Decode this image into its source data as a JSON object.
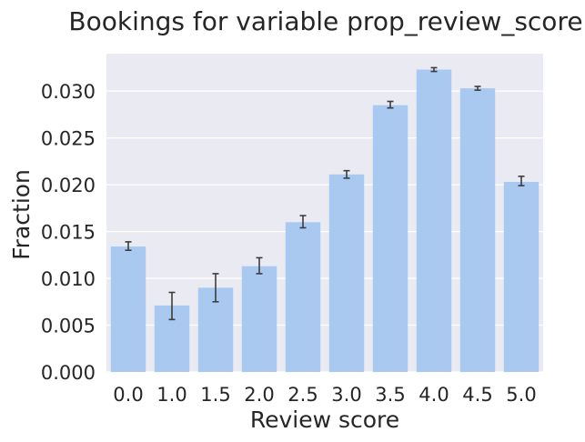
{
  "chart_data": {
    "type": "bar",
    "title": "Bookings for variable prop_review_score",
    "xlabel": "Review score",
    "ylabel": "Fraction",
    "categories": [
      "0.0",
      "1.0",
      "1.5",
      "2.0",
      "2.5",
      "3.0",
      "3.5",
      "4.0",
      "4.5",
      "5.0"
    ],
    "values": [
      0.0134,
      0.0071,
      0.009,
      0.0113,
      0.016,
      0.0211,
      0.0285,
      0.0323,
      0.0303,
      0.0203
    ],
    "error_low": [
      0.013,
      0.0056,
      0.0075,
      0.0105,
      0.0154,
      0.0207,
      0.0282,
      0.0321,
      0.0301,
      0.0199
    ],
    "error_high": [
      0.0139,
      0.0085,
      0.0105,
      0.0122,
      0.0167,
      0.0215,
      0.0289,
      0.0325,
      0.0305,
      0.0209
    ],
    "ylim": [
      0,
      0.034
    ],
    "yticks": [
      "0.000",
      "0.005",
      "0.010",
      "0.015",
      "0.020",
      "0.025",
      "0.030"
    ],
    "grid": true,
    "colors": {
      "bar": "#a9c9f0",
      "plot_background": "#eaeaf2",
      "grid": "#ffffff",
      "error_bar": "#3d3d3d",
      "text": "#262626"
    }
  }
}
